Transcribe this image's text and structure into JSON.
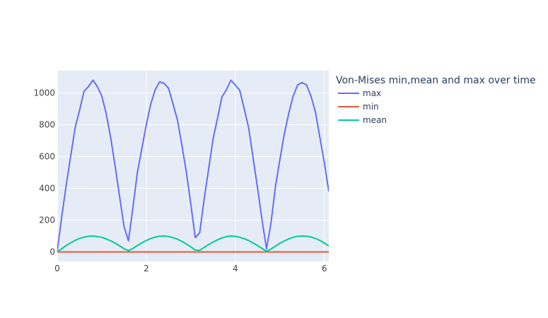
{
  "chart_data": {
    "type": "line",
    "title": "",
    "xlabel": "",
    "ylabel": "",
    "xlim": [
      0,
      6.1
    ],
    "ylim": [
      -60,
      1140
    ],
    "x_ticks": [
      0,
      2,
      4,
      6
    ],
    "y_ticks": [
      0,
      200,
      400,
      600,
      800,
      1000
    ],
    "grid": true,
    "background": "#e5ecf6",
    "legend": {
      "title": "Von-Mises min,mean and max over time",
      "placement": "right"
    },
    "x": [
      0,
      0.1,
      0.2,
      0.3,
      0.4,
      0.5,
      0.6,
      0.7,
      0.8,
      0.9,
      1.0,
      1.1,
      1.2,
      1.3,
      1.4,
      1.5,
      1.6,
      1.7,
      1.8,
      1.9,
      2.0,
      2.1,
      2.2,
      2.3,
      2.4,
      2.5,
      2.6,
      2.7,
      2.8,
      2.9,
      3.0,
      3.1,
      3.2,
      3.3,
      3.4,
      3.5,
      3.6,
      3.7,
      3.8,
      3.9,
      4.0,
      4.1,
      4.2,
      4.3,
      4.4,
      4.5,
      4.6,
      4.7,
      4.8,
      4.9,
      5.0,
      5.1,
      5.2,
      5.3,
      5.4,
      5.5,
      5.6,
      5.7,
      5.8,
      5.9,
      6.0,
      6.1
    ],
    "series": [
      {
        "name": "max",
        "color": "#636efa",
        "values": [
          10,
          220,
          420,
          600,
          780,
          890,
          1010,
          1040,
          1080,
          1040,
          980,
          870,
          720,
          540,
          350,
          160,
          70,
          280,
          500,
          650,
          800,
          930,
          1020,
          1070,
          1060,
          1030,
          930,
          830,
          670,
          500,
          300,
          90,
          120,
          330,
          520,
          710,
          840,
          975,
          1020,
          1080,
          1050,
          1015,
          900,
          780,
          590,
          400,
          200,
          20,
          180,
          410,
          580,
          740,
          870,
          980,
          1050,
          1065,
          1050,
          980,
          880,
          720,
          560,
          380
        ]
      },
      {
        "name": "min",
        "color": "#ef553b",
        "values": [
          0,
          0,
          0,
          0,
          0,
          0,
          0,
          0,
          0,
          0,
          0,
          0,
          0,
          0,
          0,
          0,
          0,
          0,
          0,
          0,
          0,
          0,
          0,
          0,
          0,
          0,
          0,
          0,
          0,
          0,
          0,
          0,
          0,
          0,
          0,
          0,
          0,
          0,
          0,
          0,
          0,
          0,
          0,
          0,
          0,
          0,
          0,
          0,
          0,
          0,
          0,
          0,
          0,
          0,
          0,
          0,
          0,
          0,
          0,
          0,
          0,
          0
        ]
      },
      {
        "name": "mean",
        "color": "#00cc96",
        "values": [
          2,
          20,
          40,
          57,
          72,
          85,
          93,
          98,
          100,
          97,
          92,
          82,
          70,
          55,
          38,
          20,
          8,
          22,
          40,
          57,
          72,
          84,
          93,
          99,
          100,
          97,
          90,
          80,
          66,
          50,
          32,
          12,
          10,
          28,
          46,
          62,
          76,
          88,
          96,
          100,
          98,
          92,
          83,
          71,
          56,
          40,
          22,
          5,
          18,
          36,
          54,
          69,
          82,
          92,
          98,
          100,
          99,
          94,
          85,
          72,
          56,
          38
        ]
      }
    ]
  }
}
